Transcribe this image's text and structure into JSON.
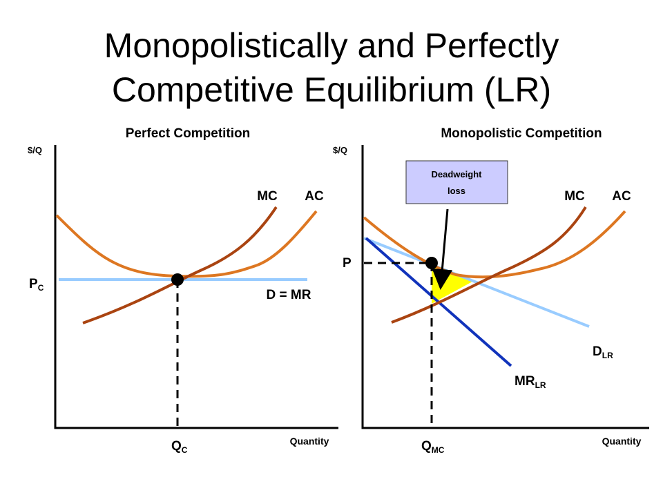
{
  "header": {
    "title_lines": [
      "Monopolistically and Perfectly",
      "Competitive Equilibrium (LR)"
    ]
  },
  "left_panel": {
    "title": "Perfect Competition",
    "y_axis": "$/Q",
    "x_axis": "Quantity",
    "mc": "MC",
    "ac": "AC",
    "demand": "D = MR",
    "price": {
      "main": "P",
      "sub": "C"
    },
    "quantity": {
      "main": "Q",
      "sub": "C"
    }
  },
  "right_panel": {
    "title": "Monopolistic Competition",
    "y_axis": "$/Q",
    "x_axis": "Quantity",
    "mc": "MC",
    "ac": "AC",
    "price": "P",
    "deadweight_lines": [
      "Deadweight",
      "loss"
    ],
    "demand": {
      "main": "D",
      "sub": "LR"
    },
    "marginal_revenue": {
      "main": "MR",
      "sub": "LR"
    },
    "quantity": {
      "main": "Q",
      "sub": "MC"
    }
  }
}
